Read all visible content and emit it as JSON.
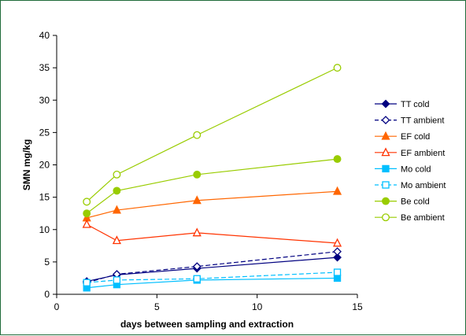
{
  "chart_data": {
    "type": "line",
    "title": "",
    "xlabel": "days between sampling and extraction",
    "ylabel": "SMN mg/kg",
    "xlim": [
      0,
      15
    ],
    "ylim": [
      0,
      40
    ],
    "xticks": [
      0,
      5,
      10,
      15
    ],
    "yticks": [
      0,
      5,
      10,
      15,
      20,
      25,
      30,
      35,
      40
    ],
    "grid": false,
    "legend_position": "right",
    "x": [
      1.5,
      3,
      7,
      14
    ],
    "series": [
      {
        "name": "TT cold",
        "values": [
          2.0,
          3.0,
          4.0,
          5.7
        ],
        "color": "#000080",
        "marker": "diamond",
        "filled": true,
        "dashed": false
      },
      {
        "name": "TT ambient",
        "values": [
          1.8,
          3.1,
          4.3,
          6.6
        ],
        "color": "#000080",
        "marker": "diamond",
        "filled": false,
        "dashed": true
      },
      {
        "name": "EF cold",
        "values": [
          11.8,
          13.0,
          14.5,
          15.9
        ],
        "color": "#ff6600",
        "marker": "triangle",
        "filled": true,
        "dashed": false
      },
      {
        "name": "EF ambient",
        "values": [
          10.8,
          8.3,
          9.5,
          7.9
        ],
        "color": "#ff3300",
        "marker": "triangle",
        "filled": false,
        "dashed": false
      },
      {
        "name": "Mo cold",
        "values": [
          1.0,
          1.5,
          2.2,
          2.5
        ],
        "color": "#00bfff",
        "marker": "square",
        "filled": true,
        "dashed": false
      },
      {
        "name": "Mo ambient",
        "values": [
          1.8,
          2.2,
          2.4,
          3.4
        ],
        "color": "#00bfff",
        "marker": "square",
        "filled": false,
        "dashed": true
      },
      {
        "name": "Be cold",
        "values": [
          12.5,
          16.0,
          18.5,
          20.9
        ],
        "color": "#99cc00",
        "marker": "circle",
        "filled": true,
        "dashed": false
      },
      {
        "name": "Be ambient",
        "values": [
          14.3,
          18.5,
          24.6,
          35.0
        ],
        "color": "#99cc00",
        "marker": "circle",
        "filled": false,
        "dashed": false
      }
    ]
  }
}
